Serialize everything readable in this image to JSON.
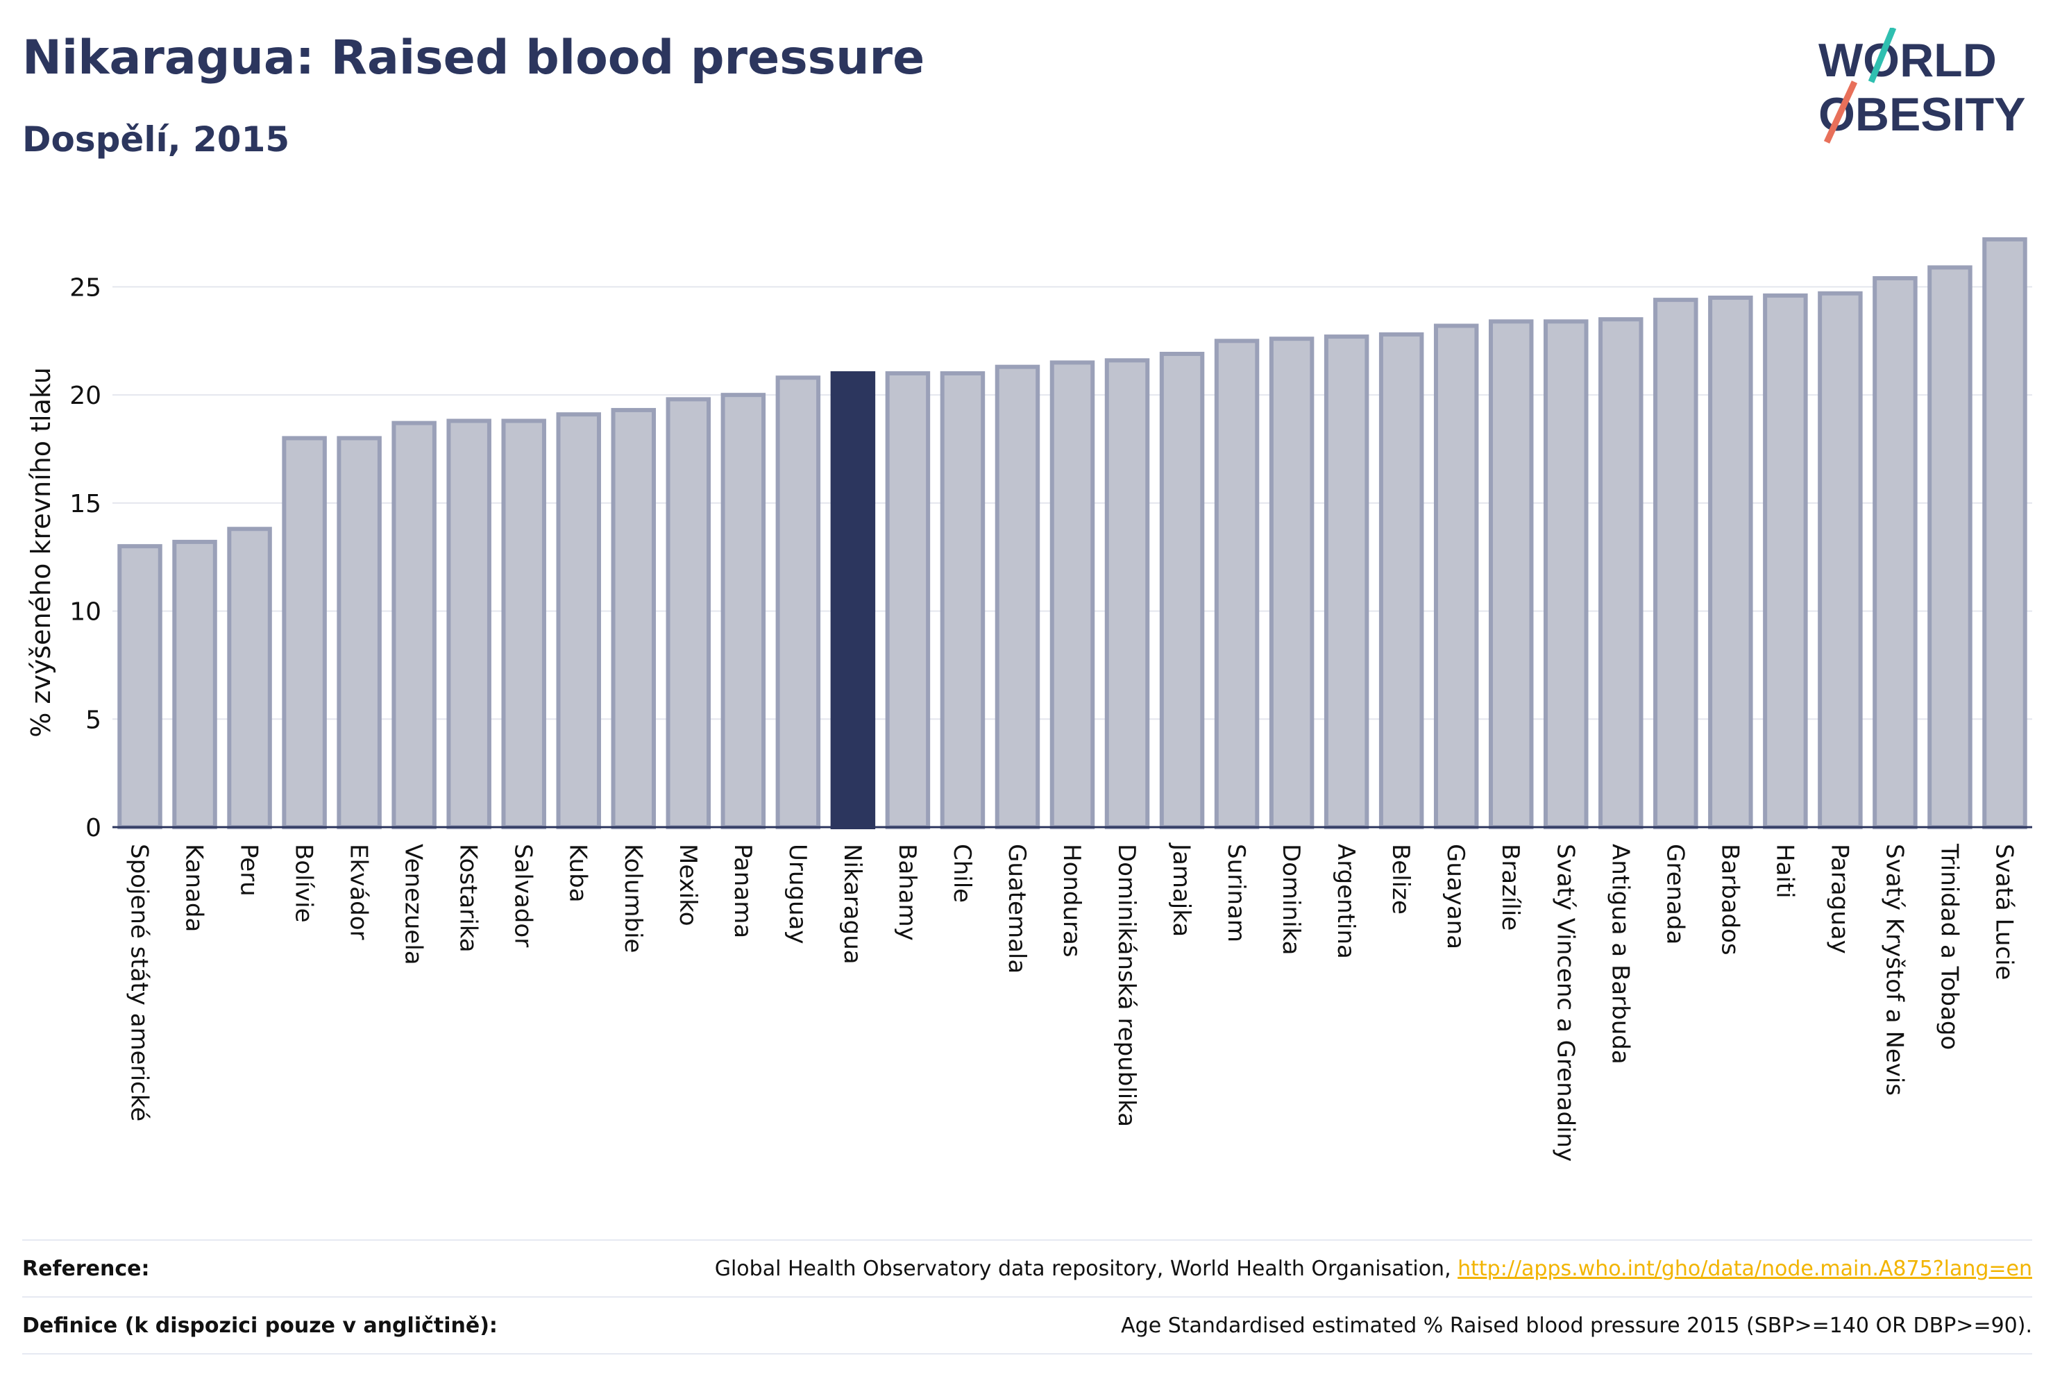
{
  "header": {
    "title": "Nikaragua: Raised blood pressure",
    "subtitle": "Dospělí, 2015"
  },
  "logo": {
    "line1": "WORLD",
    "line2": "OBESITY",
    "accent_teal": "#2fbfb0",
    "accent_coral": "#e8705a"
  },
  "colors": {
    "bar_fill": "#c0c3cf",
    "bar_stroke": "#9aa0b8",
    "highlight": "#2c365e",
    "grid": "#e4e6ee",
    "axis": "#2c365e"
  },
  "chart_data": {
    "type": "bar",
    "ylabel": "% zvýšeného krevního tlaku",
    "ylim": [
      0,
      28
    ],
    "yticks": [
      0,
      5,
      10,
      15,
      20,
      25
    ],
    "grid": true,
    "highlight_category": "Nikaragua",
    "categories": [
      "Spojené státy americké",
      "Kanada",
      "Peru",
      "Bolívie",
      "Ekvádor",
      "Venezuela",
      "Kostarika",
      "Salvador",
      "Kuba",
      "Kolumbie",
      "Mexiko",
      "Panama",
      "Uruguay",
      "Nikaragua",
      "Bahamy",
      "Chile",
      "Guatemala",
      "Honduras",
      "Dominikánská republika",
      "Jamajka",
      "Surinam",
      "Dominika",
      "Argentina",
      "Belize",
      "Guayana",
      "Brazílie",
      "Svatý Vincenc a Grenadiny",
      "Antigua a Barbuda",
      "Grenada",
      "Barbados",
      "Haiti",
      "Paraguay",
      "Svatý Kryštof a Nevis",
      "Trinidad a Tobago",
      "Svatá Lucie"
    ],
    "values": [
      13.0,
      13.2,
      13.8,
      18.0,
      18.0,
      18.7,
      18.8,
      18.8,
      19.1,
      19.3,
      19.8,
      20.0,
      20.8,
      21.0,
      21.0,
      21.0,
      21.3,
      21.5,
      21.6,
      21.9,
      22.5,
      22.6,
      22.7,
      22.8,
      23.2,
      23.4,
      23.4,
      23.5,
      24.4,
      24.5,
      24.6,
      24.7,
      25.4,
      25.9,
      27.2
    ]
  },
  "footer": {
    "reference_label": "Reference:",
    "reference_text": "Global Health Observatory data repository, World Health Organisation, ",
    "reference_link": "http://apps.who.int/gho/data/node.main.A875?lang=en",
    "definition_label": "Definice (k dispozici pouze v angličtině):",
    "definition_text": "Age Standardised estimated % Raised blood pressure 2015 (SBP>=140 OR DBP>=90)."
  }
}
